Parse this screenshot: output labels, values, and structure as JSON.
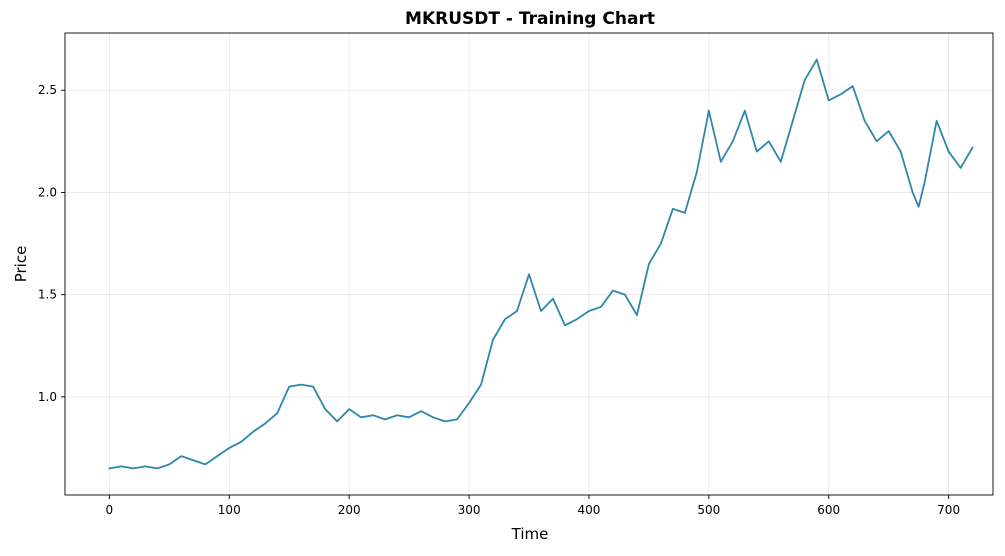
{
  "chart_data": {
    "type": "line",
    "title": "MKRUSDT - Training Chart",
    "xlabel": "Time",
    "ylabel": "Price",
    "xlim": [
      -37,
      737
    ],
    "ylim": [
      0.52,
      2.78
    ],
    "grid": true,
    "line_color": "#2e86ab",
    "x_ticks": [
      0,
      100,
      200,
      300,
      400,
      500,
      600,
      700
    ],
    "x_tick_labels": [
      "0",
      "100",
      "200",
      "300",
      "400",
      "500",
      "600",
      "700"
    ],
    "y_ticks": [
      1.0,
      1.5,
      2.0,
      2.5
    ],
    "y_tick_labels": [
      "1.0",
      "1.5",
      "2.0",
      "2.5"
    ],
    "series": [
      {
        "x": [
          0,
          10,
          20,
          30,
          40,
          50,
          60,
          70,
          80,
          90,
          100,
          110,
          120,
          130,
          140,
          150,
          160,
          170,
          180,
          190,
          200,
          210,
          220,
          230,
          240,
          250,
          260,
          270,
          280,
          290,
          300,
          310,
          320,
          330,
          340,
          350,
          360,
          370,
          380,
          390,
          400,
          410,
          420,
          430,
          440,
          450,
          460,
          470,
          480,
          490,
          500,
          510,
          520,
          530,
          540,
          550,
          560,
          570,
          580,
          590,
          600,
          610,
          620,
          630,
          640,
          650,
          660,
          670,
          675,
          680,
          690,
          700,
          710,
          720
        ],
        "values": [
          0.65,
          0.66,
          0.65,
          0.66,
          0.65,
          0.67,
          0.71,
          0.69,
          0.67,
          0.71,
          0.75,
          0.78,
          0.83,
          0.87,
          0.92,
          1.05,
          1.06,
          1.05,
          0.94,
          0.88,
          0.94,
          0.9,
          0.91,
          0.89,
          0.91,
          0.9,
          0.93,
          0.9,
          0.88,
          0.89,
          0.97,
          1.06,
          1.28,
          1.38,
          1.42,
          1.6,
          1.42,
          1.48,
          1.35,
          1.38,
          1.42,
          1.44,
          1.52,
          1.5,
          1.4,
          1.65,
          1.75,
          1.92,
          1.9,
          2.1,
          2.4,
          2.15,
          2.25,
          2.4,
          2.2,
          2.25,
          2.15,
          2.35,
          2.55,
          2.65,
          2.45,
          2.48,
          2.52,
          2.35,
          2.25,
          2.3,
          2.2,
          2.0,
          1.93,
          2.05,
          2.35,
          2.2,
          2.12,
          2.22
        ]
      }
    ]
  }
}
